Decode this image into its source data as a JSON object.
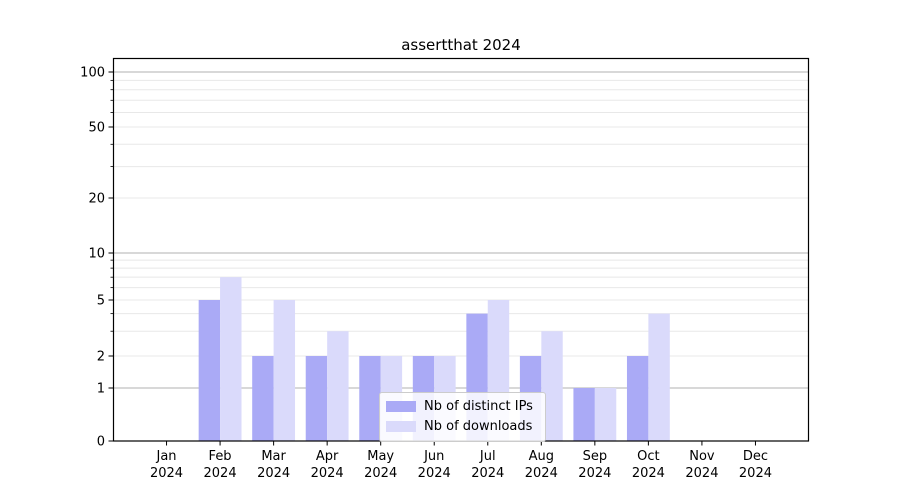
{
  "title": "assertthat 2024",
  "chart_data": {
    "type": "bar",
    "title": "assertthat 2024",
    "categories": [
      "Jan",
      "Feb",
      "Mar",
      "Apr",
      "May",
      "Jun",
      "Jul",
      "Aug",
      "Sep",
      "Oct",
      "Nov",
      "Dec"
    ],
    "category_year": "2024",
    "series": [
      {
        "name": "Nb of distinct IPs",
        "color": "#aaaaf6",
        "values": [
          0,
          5,
          2,
          2,
          2,
          2,
          4,
          2,
          1,
          2,
          0,
          0
        ]
      },
      {
        "name": "Nb of downloads",
        "color": "#dadafb",
        "values": [
          0,
          7,
          5,
          3,
          2,
          2,
          5,
          3,
          1,
          4,
          0,
          0
        ]
      }
    ],
    "yscale": "symlog",
    "yticks": [
      0,
      1,
      2,
      5,
      10,
      20,
      50,
      100
    ],
    "major_grid_values": [
      1,
      10,
      100
    ],
    "minor_grid_values": [
      2,
      3,
      4,
      5,
      6,
      7,
      8,
      9,
      20,
      30,
      40,
      50,
      60,
      70,
      80,
      90
    ],
    "ylim": [
      0,
      120
    ],
    "grid": true,
    "legend_position": "lower center"
  },
  "colors": {
    "bar_distinct_ips": "#aaaaf6",
    "bar_downloads": "#dadafb",
    "grid_major": "#b2b2b2",
    "grid_minor": "#e8e8e8",
    "axis": "#000000",
    "legend_border": "#cccccc",
    "legend_background": "rgba(255,255,255,0.85)"
  }
}
